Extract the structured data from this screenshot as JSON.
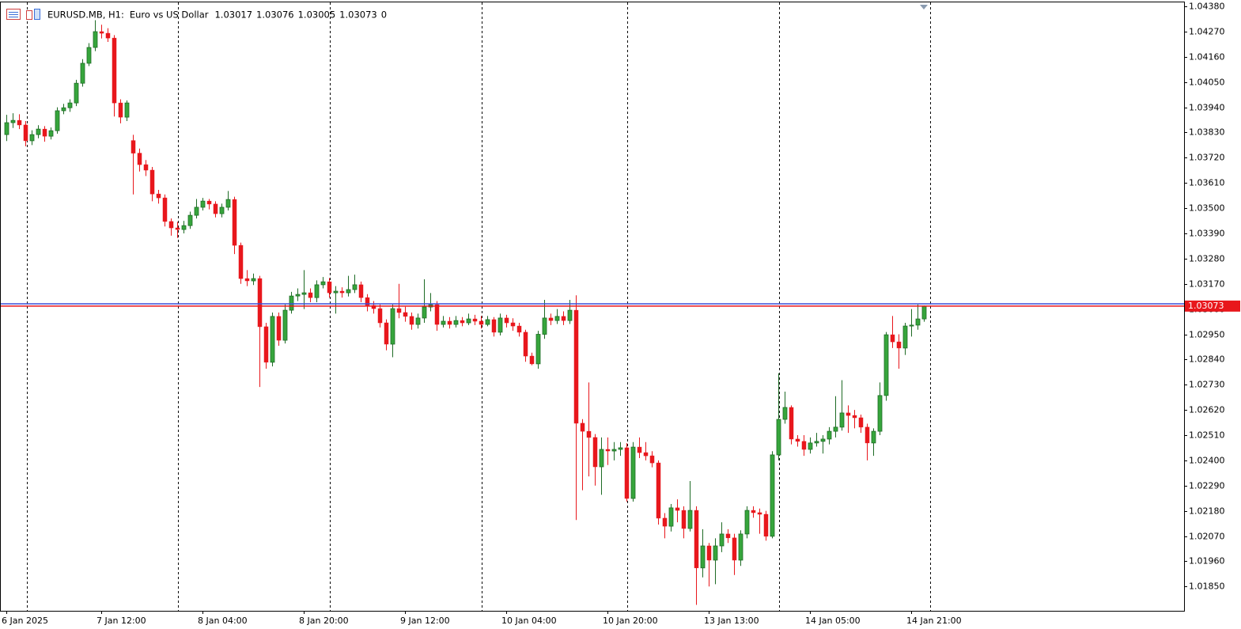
{
  "chart_data": {
    "type": "candlestick",
    "title": "EURUSD.MB, H1:",
    "subtitle": "Euro vs US Dollar",
    "header_value": 0,
    "up_color": "#36a53c",
    "up_outline": "#1e6b25",
    "down_color": "#e8171c",
    "bid_color": "#e8171c",
    "ask_color": "#3a4fd8",
    "ask_line": 1.03083,
    "ylim": [
      1.01744,
      1.04408
    ],
    "yticks": [
      {
        "value": 1.0438,
        "label": "1.04380"
      },
      {
        "value": 1.0427,
        "label": "1.04270"
      },
      {
        "value": 1.0416,
        "label": "1.04160"
      },
      {
        "value": 1.0405,
        "label": "1.04050"
      },
      {
        "value": 1.0394,
        "label": "1.03940"
      },
      {
        "value": 1.0383,
        "label": "1.03830"
      },
      {
        "value": 1.0372,
        "label": "1.03720"
      },
      {
        "value": 1.0361,
        "label": "1.03610"
      },
      {
        "value": 1.035,
        "label": "1.03500"
      },
      {
        "value": 1.0339,
        "label": "1.03390"
      },
      {
        "value": 1.0328,
        "label": "1.03280"
      },
      {
        "value": 1.0317,
        "label": "1.03170"
      },
      {
        "value": 1.0306,
        "label": "1.03060"
      },
      {
        "value": 1.0295,
        "label": "1.02950"
      },
      {
        "value": 1.0284,
        "label": "1.02840"
      },
      {
        "value": 1.0273,
        "label": "1.02730"
      },
      {
        "value": 1.0262,
        "label": "1.02620"
      },
      {
        "value": 1.0251,
        "label": "1.02510"
      },
      {
        "value": 1.024,
        "label": "1.02400"
      },
      {
        "value": 1.0229,
        "label": "1.02290"
      },
      {
        "value": 1.0218,
        "label": "1.02180"
      },
      {
        "value": 1.0207,
        "label": "1.02070"
      },
      {
        "value": 1.0196,
        "label": "1.01960"
      },
      {
        "value": 1.0185,
        "label": "1.01850"
      }
    ],
    "categories": [
      "6 Jan 2025",
      null,
      null,
      null,
      null,
      null,
      null,
      null,
      null,
      null,
      null,
      null,
      null,
      null,
      null,
      "7 Jan 12:00",
      null,
      null,
      null,
      null,
      null,
      null,
      null,
      null,
      null,
      null,
      null,
      null,
      null,
      null,
      null,
      "8 Jan 04:00",
      null,
      null,
      null,
      null,
      null,
      null,
      null,
      null,
      null,
      null,
      null,
      null,
      null,
      null,
      null,
      "8 Jan 20:00",
      null,
      null,
      null,
      null,
      null,
      null,
      null,
      null,
      null,
      null,
      null,
      null,
      null,
      null,
      null,
      "9 Jan 12:00",
      null,
      null,
      null,
      null,
      null,
      null,
      null,
      null,
      null,
      null,
      null,
      null,
      null,
      null,
      null,
      "10 Jan 04:00",
      null,
      null,
      null,
      null,
      null,
      null,
      null,
      null,
      null,
      null,
      null,
      null,
      null,
      null,
      null,
      "10 Jan 20:00",
      null,
      null,
      null,
      null,
      null,
      null,
      null,
      null,
      null,
      null,
      null,
      null,
      null,
      null,
      null,
      "13 Jan 13:00",
      null,
      null,
      null,
      null,
      null,
      null,
      null,
      null,
      null,
      null,
      null,
      null,
      null,
      null,
      null,
      "14 Jan 05:00",
      null,
      null,
      null,
      null,
      null,
      null,
      null,
      null,
      null,
      null,
      null,
      null,
      null,
      null,
      null,
      "14 Jan 21:00",
      null,
      null
    ],
    "open": [
      1.03821,
      1.03873,
      1.03883,
      1.03863,
      1.03794,
      1.03821,
      1.03845,
      1.03814,
      1.03838,
      1.03925,
      1.03938,
      1.03959,
      1.04045,
      1.04132,
      1.04201,
      1.0427,
      1.04263,
      1.04242,
      1.03959,
      1.03897,
      1.03795,
      1.0374,
      1.0369,
      1.03666,
      1.03562,
      1.03545,
      1.03442,
      1.03414,
      1.03407,
      1.03424,
      1.03469,
      1.03504,
      1.03531,
      1.03518,
      1.03476,
      1.03504,
      1.03538,
      1.03338,
      1.03193,
      1.03183,
      1.03193,
      1.02983,
      1.02828,
      1.03028,
      1.02924,
      1.03055,
      1.03117,
      1.03124,
      1.03131,
      1.0311,
      1.03166,
      1.03179,
      1.03131,
      1.03138,
      1.03131,
      1.03145,
      1.03166,
      1.0311,
      1.03076,
      1.03062,
      1.03,
      1.02907,
      1.03062,
      1.03045,
      1.03028,
      1.02993,
      1.03021,
      1.03069,
      1.03079,
      1.02993,
      1.03007,
      1.02993,
      1.0301,
      1.03,
      1.03017,
      1.03007,
      1.02993,
      1.03014,
      1.02959,
      1.03021,
      1.03,
      1.02986,
      1.02959,
      1.02855,
      1.02821,
      1.0295,
      1.03021,
      1.0301,
      1.03028,
      1.0301,
      1.03055,
      1.02562,
      1.02527,
      1.025,
      1.02372,
      1.02448,
      1.02441,
      1.02448,
      1.02455,
      1.02234,
      1.02458,
      1.02434,
      1.0242,
      1.02389,
      1.02148,
      1.02113,
      1.02193,
      1.02182,
      1.02103,
      1.02182,
      1.01931,
      1.02027,
      1.01965,
      1.02027,
      1.02079,
      1.02062,
      1.01965,
      1.02079,
      1.02182,
      1.02172,
      1.02165,
      1.02069,
      1.02424,
      1.02579,
      1.02631,
      1.02493,
      1.02483,
      1.02448,
      1.02476,
      1.02483,
      1.02493,
      1.02527,
      1.02545,
      1.02607,
      1.02596,
      1.02586,
      1.02545,
      1.02476,
      1.02527,
      1.02683,
      1.02948,
      1.02917,
      1.0289,
      1.02986,
      1.0299,
      1.03017
    ],
    "high": [
      1.03907,
      1.03914,
      1.0391,
      1.0388,
      1.0384,
      1.03862,
      1.03858,
      1.03852,
      1.0394,
      1.03955,
      1.03975,
      1.0406,
      1.0415,
      1.0422,
      1.0432,
      1.043,
      1.04285,
      1.04255,
      1.03975,
      1.0397,
      1.0382,
      1.0376,
      1.0371,
      1.0368,
      1.0358,
      1.0356,
      1.03455,
      1.0344,
      1.03445,
      1.03485,
      1.0354,
      1.03545,
      1.0354,
      1.0353,
      1.0352,
      1.03575,
      1.0355,
      1.0335,
      1.0323,
      1.03215,
      1.03205,
      1.03,
      1.03045,
      1.03045,
      1.0308,
      1.03135,
      1.0315,
      1.0323,
      1.0315,
      1.03185,
      1.032,
      1.03195,
      1.0316,
      1.03155,
      1.03205,
      1.0321,
      1.0318,
      1.03125,
      1.03095,
      1.0308,
      1.03015,
      1.0308,
      1.0317,
      1.0307,
      1.03045,
      1.0304,
      1.0319,
      1.0313,
      1.03095,
      1.0303,
      1.03025,
      1.0303,
      1.03025,
      1.0304,
      1.03035,
      1.0303,
      1.0303,
      1.03025,
      1.0304,
      1.03035,
      1.0302,
      1.03,
      1.0297,
      1.0287,
      1.02965,
      1.031,
      1.0304,
      1.0306,
      1.0305,
      1.031,
      1.0312,
      1.0258,
      1.0274,
      1.02515,
      1.025,
      1.025,
      1.0248,
      1.0248,
      1.02475,
      1.0248,
      1.025,
      1.0248,
      1.0244,
      1.024,
      1.0217,
      1.0221,
      1.0223,
      1.022,
      1.0231,
      1.022,
      1.021,
      1.0204,
      1.0206,
      1.0213,
      1.021,
      1.0208,
      1.02095,
      1.022,
      1.022,
      1.0219,
      1.0218,
      1.0244,
      1.0278,
      1.027,
      1.0264,
      1.0251,
      1.0251,
      1.025,
      1.0252,
      1.0251,
      1.02545,
      1.0268,
      1.0275,
      1.0264,
      1.0262,
      1.026,
      1.0256,
      1.0254,
      1.0274,
      1.0296,
      1.0303,
      1.0295,
      1.03,
      1.0306,
      1.0308,
      1.03076
    ],
    "low": [
      1.03793,
      1.0385,
      1.03845,
      1.0377,
      1.03775,
      1.03805,
      1.0379,
      1.038,
      1.03825,
      1.0391,
      1.0392,
      1.03945,
      1.0403,
      1.0412,
      1.04185,
      1.0424,
      1.04225,
      1.039,
      1.0387,
      1.0388,
      1.0356,
      1.0366,
      1.0364,
      1.0353,
      1.0352,
      1.0342,
      1.0338,
      1.0337,
      1.0339,
      1.0341,
      1.03455,
      1.0349,
      1.03495,
      1.0346,
      1.0346,
      1.0349,
      1.033,
      1.0317,
      1.0316,
      1.03165,
      1.0272,
      1.028,
      1.0281,
      1.029,
      1.0291,
      1.0304,
      1.03095,
      1.0306,
      1.0309,
      1.0309,
      1.0315,
      1.0311,
      1.0304,
      1.0311,
      1.03115,
      1.0313,
      1.0309,
      1.0305,
      1.0304,
      1.0298,
      1.0288,
      1.0285,
      1.0302,
      1.03005,
      1.0297,
      1.02975,
      1.03,
      1.0305,
      1.02965,
      1.0298,
      1.02975,
      1.0298,
      1.02985,
      1.0299,
      1.0299,
      1.02975,
      1.02985,
      1.0294,
      1.02945,
      1.0298,
      1.02965,
      1.0294,
      1.0283,
      1.02815,
      1.028,
      1.0293,
      1.0299,
      1.02995,
      1.0299,
      1.02995,
      1.0214,
      1.0227,
      1.0233,
      1.0229,
      1.0225,
      1.0238,
      1.024,
      1.0242,
      1.0222,
      1.0222,
      1.0241,
      1.024,
      1.0237,
      1.0212,
      1.0206,
      1.0209,
      1.0213,
      1.0206,
      1.0209,
      1.0177,
      1.0189,
      1.0185,
      1.0186,
      1.02,
      1.0204,
      1.019,
      1.0194,
      1.0206,
      1.0215,
      1.0208,
      1.0205,
      1.0206,
      1.024,
      1.0256,
      1.0247,
      1.0246,
      1.0242,
      1.0243,
      1.0246,
      1.0243,
      1.0247,
      1.025,
      1.0253,
      1.0252,
      1.0254,
      1.0252,
      1.024,
      1.0242,
      1.0251,
      1.0266,
      1.0289,
      1.028,
      1.0286,
      1.0294,
      1.0297,
      1.03005
    ],
    "close": [
      1.03873,
      1.03883,
      1.03863,
      1.03794,
      1.03821,
      1.03845,
      1.03814,
      1.03838,
      1.03925,
      1.03938,
      1.03959,
      1.04045,
      1.04132,
      1.04201,
      1.0427,
      1.04263,
      1.04242,
      1.03959,
      1.03897,
      1.03959,
      1.0374,
      1.0369,
      1.03666,
      1.03562,
      1.03545,
      1.03442,
      1.03414,
      1.03407,
      1.03424,
      1.03469,
      1.03504,
      1.03531,
      1.03518,
      1.03476,
      1.03504,
      1.03538,
      1.03338,
      1.03193,
      1.03183,
      1.03193,
      1.02983,
      1.02828,
      1.03028,
      1.02924,
      1.03055,
      1.03117,
      1.03124,
      1.03131,
      1.0311,
      1.03166,
      1.03179,
      1.03131,
      1.03138,
      1.03131,
      1.03145,
      1.03166,
      1.0311,
      1.03076,
      1.03062,
      1.03,
      1.02907,
      1.03062,
      1.03045,
      1.03028,
      1.02993,
      1.03021,
      1.03069,
      1.03079,
      1.02993,
      1.03007,
      1.02993,
      1.0301,
      1.03,
      1.03017,
      1.03007,
      1.02993,
      1.03014,
      1.02959,
      1.03021,
      1.03,
      1.02986,
      1.02959,
      1.02855,
      1.02821,
      1.0295,
      1.03021,
      1.0301,
      1.03028,
      1.0301,
      1.03055,
      1.02562,
      1.02527,
      1.025,
      1.02372,
      1.02448,
      1.02441,
      1.02448,
      1.02455,
      1.02234,
      1.02458,
      1.02434,
      1.0242,
      1.02389,
      1.02148,
      1.02113,
      1.02193,
      1.02182,
      1.02103,
      1.02182,
      1.01931,
      1.02027,
      1.01965,
      1.02027,
      1.02079,
      1.02062,
      1.01965,
      1.02079,
      1.02182,
      1.02172,
      1.02165,
      1.02069,
      1.02424,
      1.02579,
      1.02631,
      1.02493,
      1.02483,
      1.02448,
      1.02476,
      1.02483,
      1.02493,
      1.02527,
      1.02545,
      1.02607,
      1.02596,
      1.02586,
      1.02545,
      1.02476,
      1.02527,
      1.02683,
      1.02948,
      1.02917,
      1.0289,
      1.02986,
      1.0299,
      1.03017,
      1.03073
    ]
  }
}
